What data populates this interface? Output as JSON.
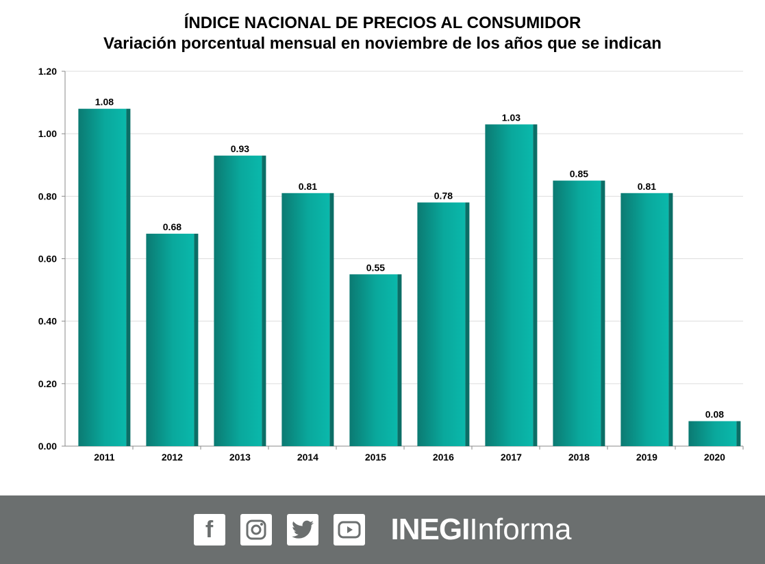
{
  "chart_data": {
    "type": "bar",
    "title": "ÍNDICE NACIONAL DE PRECIOS AL CONSUMIDOR",
    "subtitle": "Variación porcentual mensual en noviembre de los años que se indican",
    "categories": [
      "2011",
      "2012",
      "2013",
      "2014",
      "2015",
      "2016",
      "2017",
      "2018",
      "2019",
      "2020"
    ],
    "values": [
      1.08,
      0.68,
      0.93,
      0.81,
      0.55,
      0.78,
      1.03,
      0.85,
      0.81,
      0.08
    ],
    "data_labels": [
      "1.08",
      "0.68",
      "0.93",
      "0.81",
      "0.55",
      "0.78",
      "1.03",
      "0.85",
      "0.81",
      "0.08"
    ],
    "ylim": [
      0,
      1.2
    ],
    "yticks": [
      "0.00",
      "0.20",
      "0.40",
      "0.60",
      "0.80",
      "1.00",
      "1.20"
    ],
    "grid": true,
    "bar_color": "#0aa89c",
    "bar_dark_color": "#0b6e66"
  },
  "footer": {
    "icons": [
      "facebook-icon",
      "instagram-icon",
      "twitter-icon",
      "youtube-icon"
    ],
    "brand_bold": "INEGI",
    "brand_light": "Informa",
    "background": "#6b6f6f"
  }
}
